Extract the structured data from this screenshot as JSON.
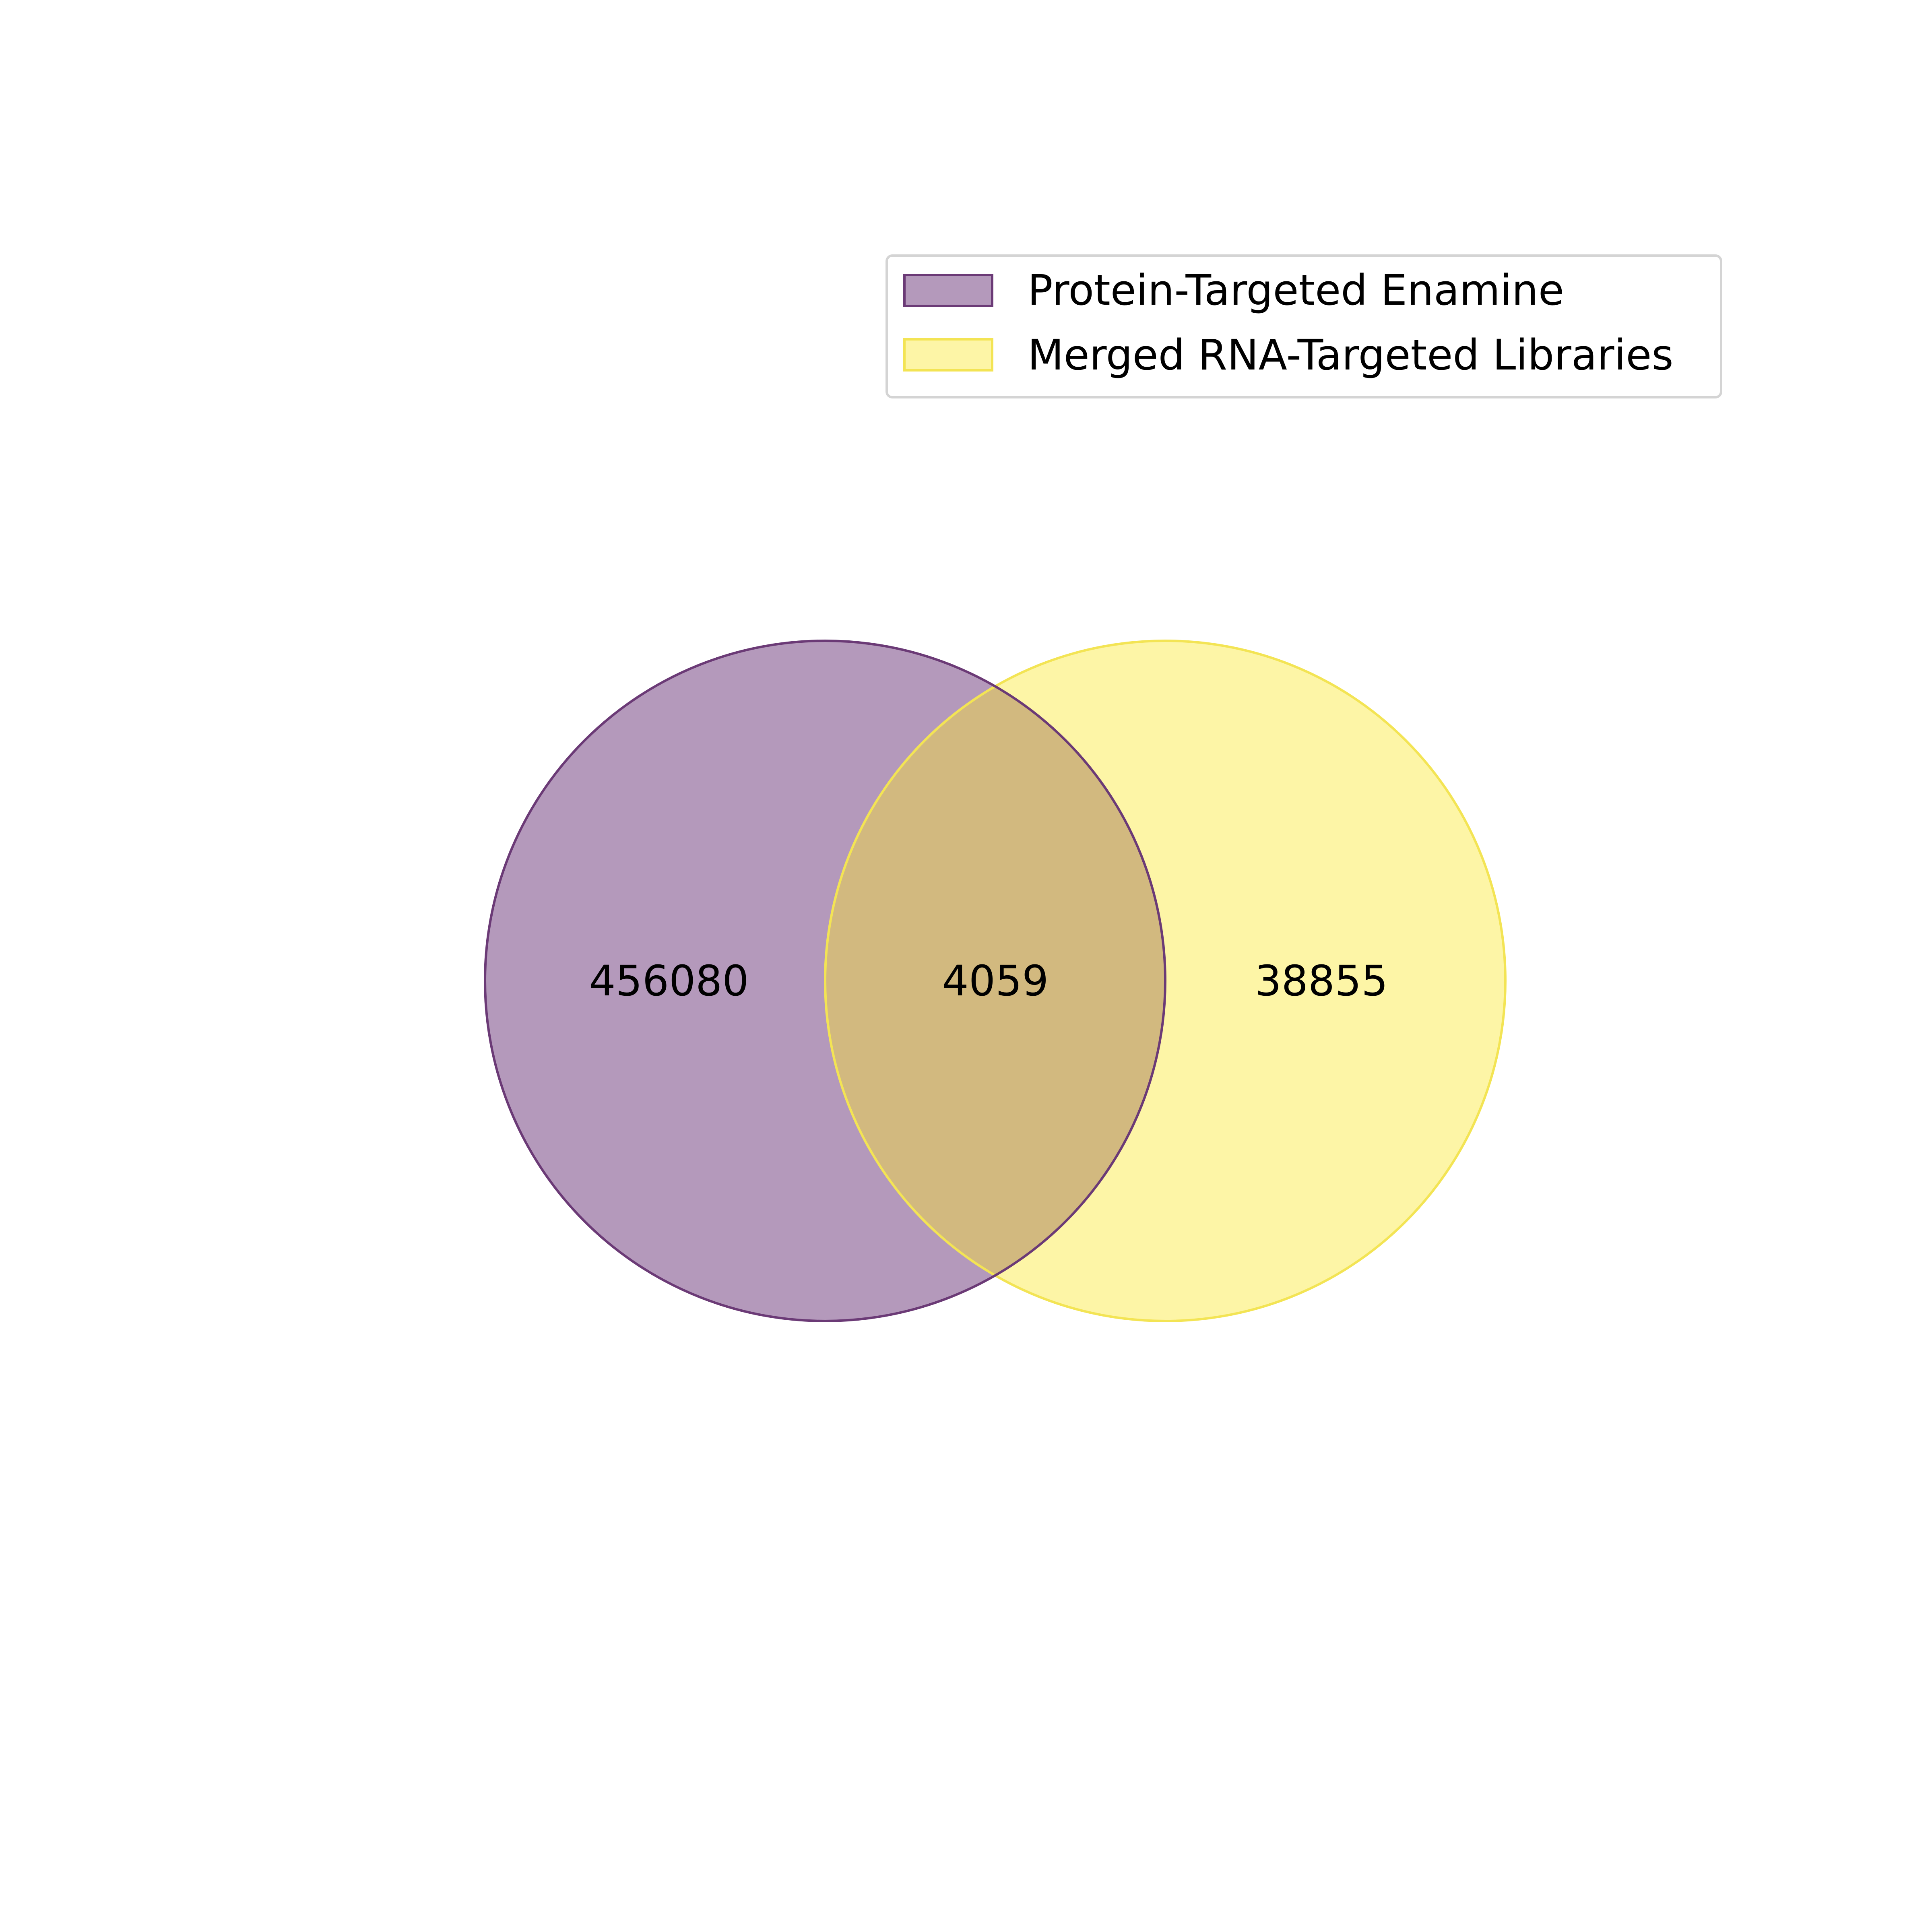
{
  "venn": {
    "sets": [
      {
        "name": "Protein-Targeted Enamine",
        "fill": "#b499bb",
        "stroke": "#6b3a76"
      },
      {
        "name": "Merged RNA-Targeted Libraries",
        "fill": "#fdf5a6",
        "stroke": "#f3e454"
      }
    ],
    "overlap_fill": "#d2b97f",
    "regions": {
      "only_protein": "456080",
      "intersection": "4059",
      "only_rna": "38855"
    }
  },
  "legend": {
    "items": [
      {
        "label": "Protein-Targeted Enamine",
        "fill": "#b499bb",
        "stroke": "#6b3a76"
      },
      {
        "label": "Merged RNA-Targeted Libraries",
        "fill": "#fdf5a6",
        "stroke": "#f3e454"
      }
    ]
  }
}
